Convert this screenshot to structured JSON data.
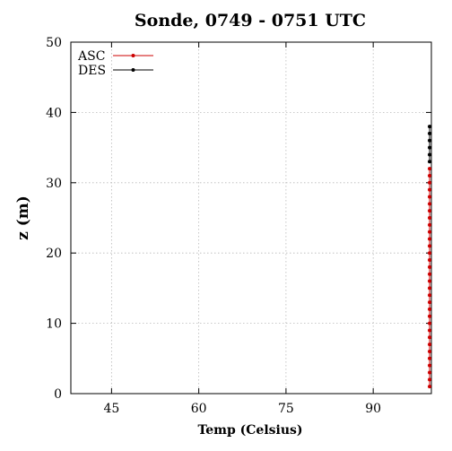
{
  "chart_data": {
    "type": "line",
    "title": "Sonde, 0749 - 0751 UTC",
    "xlabel": "Temp (Celsius)",
    "ylabel": "z (m)",
    "xlim": [
      38,
      100
    ],
    "ylim": [
      0,
      50
    ],
    "xticks": [
      45,
      60,
      75,
      90
    ],
    "yticks": [
      0,
      10,
      20,
      30,
      40,
      50
    ],
    "grid": true,
    "legend_position": "top-left",
    "series": [
      {
        "name": "ASC",
        "color": "#cc0000",
        "marker": "dot",
        "x": [
          100,
          100,
          100,
          100,
          100,
          100,
          100,
          100,
          100,
          100,
          100,
          100,
          100,
          100,
          100,
          100,
          100,
          100,
          100,
          100,
          100,
          100,
          100,
          100,
          100,
          100,
          100,
          100,
          100,
          100,
          100,
          100
        ],
        "y": [
          1,
          2,
          3,
          4,
          5,
          6,
          7,
          8,
          9,
          10,
          11,
          12,
          13,
          14,
          15,
          16,
          17,
          18,
          19,
          20,
          21,
          22,
          23,
          24,
          25,
          26,
          27,
          28,
          29,
          30,
          31,
          32
        ]
      },
      {
        "name": "DES",
        "color": "#000000",
        "marker": "dot",
        "x": [
          100,
          100,
          100,
          100,
          100,
          100
        ],
        "y": [
          38,
          37,
          36,
          35,
          34,
          33
        ]
      }
    ]
  }
}
